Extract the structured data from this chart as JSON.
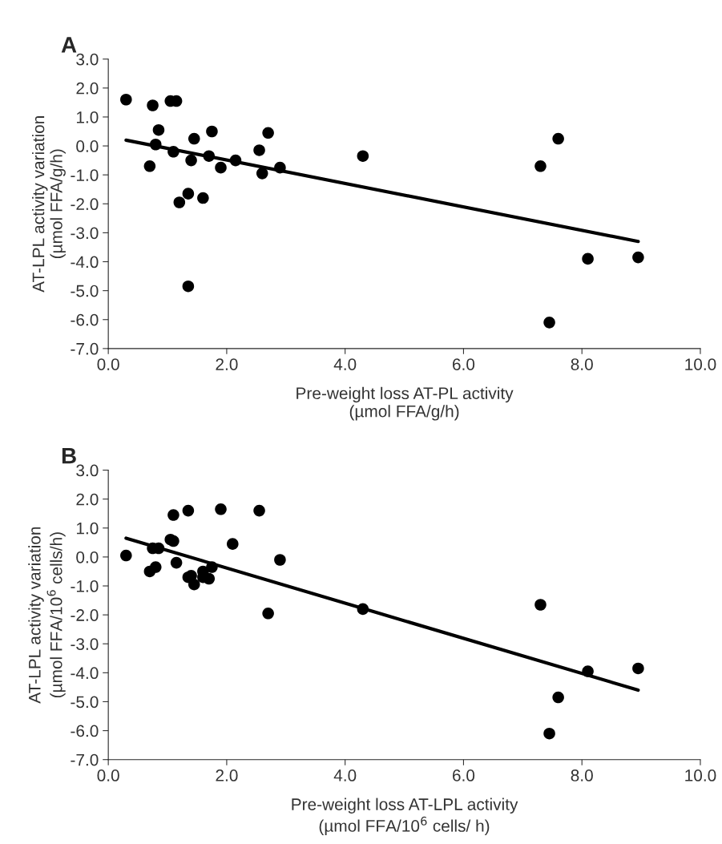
{
  "chart_data": [
    {
      "type": "scatter",
      "title": "A",
      "xlabel": "Pre-weight loss AT-PL activity\n(µmol FFA/g/h)",
      "ylabel": "AT-LPL activity variation\n(µmol FFA/g/h)",
      "xlim": [
        0,
        10
      ],
      "xticks": [
        {
          "value": 0,
          "label": "0.0"
        },
        {
          "value": 2,
          "label": "2.0"
        },
        {
          "value": 4,
          "label": "4.0"
        },
        {
          "value": 6,
          "label": "6.0"
        },
        {
          "value": 8,
          "label": "8.0"
        },
        {
          "value": 10,
          "label": "10.0"
        }
      ],
      "ylim": [
        -7,
        3
      ],
      "yticks": [
        {
          "value": -7,
          "label": "-7.0"
        },
        {
          "value": -6,
          "label": "-6.0"
        },
        {
          "value": -5,
          "label": "-5.0"
        },
        {
          "value": -4,
          "label": "-4.0"
        },
        {
          "value": -3,
          "label": "-3.0"
        },
        {
          "value": -2,
          "label": "-2.0"
        },
        {
          "value": -1,
          "label": "-1.0"
        },
        {
          "value": 0,
          "label": "0.0"
        },
        {
          "value": 1,
          "label": "1.0"
        },
        {
          "value": 2,
          "label": "2.0"
        },
        {
          "value": 3,
          "label": "3.0"
        }
      ],
      "marker": "circle",
      "series": [
        {
          "color": "#000000",
          "x": [
            0.3,
            0.75,
            0.85,
            0.8,
            0.7,
            1.05,
            1.15,
            1.1,
            1.2,
            1.35,
            1.4,
            1.35,
            1.45,
            1.6,
            1.7,
            1.75,
            1.9,
            2.15,
            2.55,
            2.6,
            2.7,
            2.9,
            4.3,
            7.3,
            7.6,
            7.45,
            8.1,
            8.95
          ],
          "values": [
            1.6,
            1.4,
            0.55,
            0.05,
            -0.7,
            1.55,
            1.55,
            -0.2,
            -1.95,
            -1.65,
            -0.5,
            -4.85,
            0.25,
            -1.8,
            -0.35,
            0.5,
            -0.75,
            -0.5,
            -0.15,
            -0.95,
            0.45,
            -0.75,
            -0.35,
            -0.7,
            0.25,
            -6.1,
            -3.9,
            -3.85
          ]
        },
        {
          "type": "line",
          "color": "#000000",
          "line_style": "solid",
          "marker": "none",
          "x": [
            0.3,
            8.95
          ],
          "values": [
            0.2,
            -3.3
          ]
        }
      ]
    },
    {
      "type": "scatter",
      "title": "B",
      "xlabel": "Pre-weight loss AT-LPL activity\n(µmol FFA/10$^{6}$ cells/ h)",
      "ylabel": "AT-LPL activity variation\n(µmol FFA/10$^{6}$ cells/h)",
      "xlim": [
        0,
        10
      ],
      "xticks": [
        {
          "value": 0,
          "label": "0.0"
        },
        {
          "value": 2,
          "label": "2.0"
        },
        {
          "value": 4,
          "label": "4.0"
        },
        {
          "value": 6,
          "label": "6.0"
        },
        {
          "value": 8,
          "label": "8.0"
        },
        {
          "value": 10,
          "label": "10.0"
        }
      ],
      "ylim": [
        -7,
        3
      ],
      "yticks": [
        {
          "value": -7,
          "label": "-7.0"
        },
        {
          "value": -6,
          "label": "-6.0"
        },
        {
          "value": -5,
          "label": "-5.0"
        },
        {
          "value": -4,
          "label": "-4.0"
        },
        {
          "value": -3,
          "label": "-3.0"
        },
        {
          "value": -2,
          "label": "-2.0"
        },
        {
          "value": -1,
          "label": "-1.0"
        },
        {
          "value": 0,
          "label": "0.0"
        },
        {
          "value": 1,
          "label": "1.0"
        },
        {
          "value": 2,
          "label": "2.0"
        },
        {
          "value": 3,
          "label": "3.0"
        }
      ],
      "marker": "circle",
      "series": [
        {
          "color": "#000000",
          "x": [
            0.3,
            0.7,
            0.75,
            0.85,
            0.8,
            1.1,
            1.05,
            1.1,
            1.15,
            1.35,
            1.35,
            1.4,
            1.45,
            1.6,
            1.6,
            1.7,
            1.75,
            1.9,
            2.1,
            2.55,
            2.7,
            2.9,
            4.3,
            7.3,
            7.6,
            7.45,
            8.1,
            8.95
          ],
          "values": [
            0.05,
            -0.5,
            0.3,
            0.3,
            -0.35,
            1.45,
            0.6,
            0.55,
            -0.2,
            1.6,
            -0.7,
            -0.65,
            -0.95,
            -0.5,
            -0.7,
            -0.75,
            -0.35,
            1.65,
            0.45,
            1.6,
            -1.95,
            -0.1,
            -1.8,
            -1.65,
            -4.85,
            -6.1,
            -3.95,
            -3.85
          ]
        },
        {
          "type": "line",
          "color": "#000000",
          "line_style": "solid",
          "marker": "none",
          "x": [
            0.3,
            8.95
          ],
          "values": [
            0.65,
            -4.6
          ]
        }
      ]
    }
  ]
}
